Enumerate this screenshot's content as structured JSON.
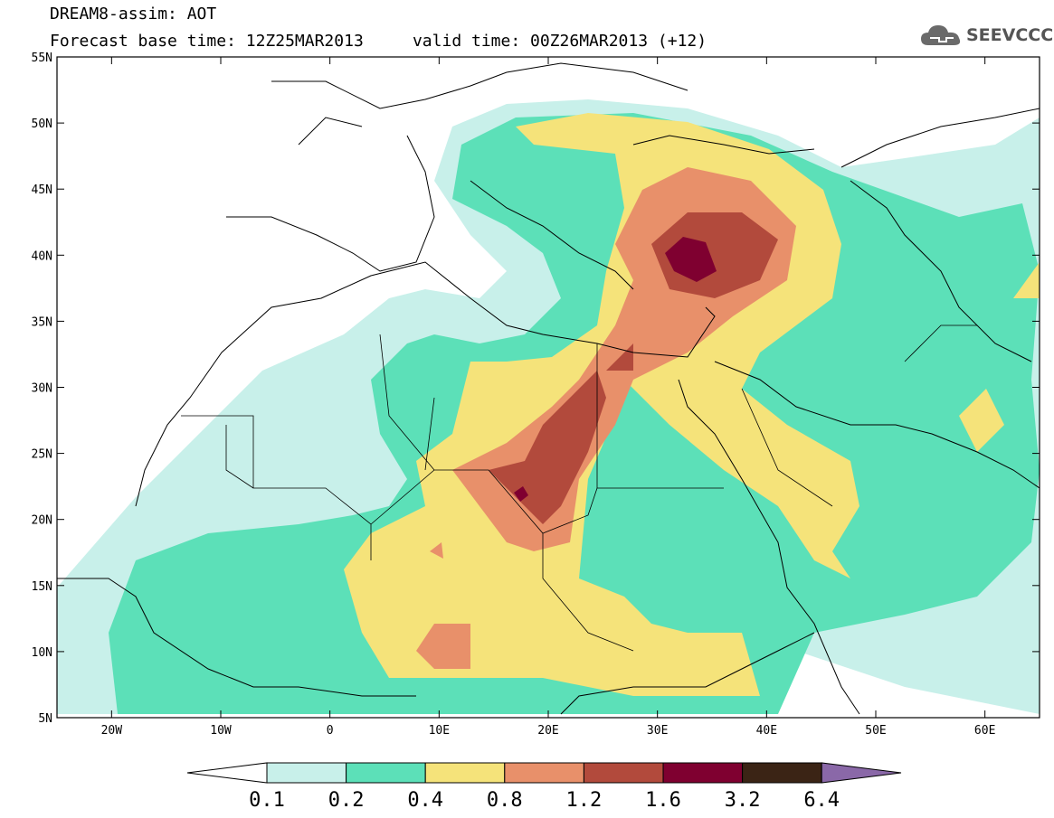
{
  "title": {
    "line1": "DREAM8-assim: AOT",
    "line2": "Forecast base time: 12Z25MAR2013     valid time: 00Z26MAR2013 (+12)"
  },
  "logo": {
    "text": "SEEVCCC",
    "icon": "cloud-icon"
  },
  "map": {
    "lon_range": [
      -25,
      65
    ],
    "lat_range": [
      5,
      55
    ],
    "lon_ticks": [
      {
        "value": -20,
        "label": "20W"
      },
      {
        "value": -10,
        "label": "10W"
      },
      {
        "value": 0,
        "label": "0"
      },
      {
        "value": 10,
        "label": "10E"
      },
      {
        "value": 20,
        "label": "20E"
      },
      {
        "value": 30,
        "label": "30E"
      },
      {
        "value": 40,
        "label": "40E"
      },
      {
        "value": 50,
        "label": "50E"
      },
      {
        "value": 60,
        "label": "60E"
      }
    ],
    "lat_ticks": [
      {
        "value": 55,
        "label": "55N"
      },
      {
        "value": 50,
        "label": "50N"
      },
      {
        "value": 45,
        "label": "45N"
      },
      {
        "value": 40,
        "label": "40N"
      },
      {
        "value": 35,
        "label": "35N"
      },
      {
        "value": 30,
        "label": "30N"
      },
      {
        "value": 25,
        "label": "25N"
      },
      {
        "value": 20,
        "label": "20N"
      },
      {
        "value": 15,
        "label": "15N"
      },
      {
        "value": 10,
        "label": "10N"
      },
      {
        "value": 5,
        "label": "5N"
      }
    ]
  },
  "colorbar": {
    "colors": [
      "#c8f0ea",
      "#5ce0b8",
      "#f5e37a",
      "#e8906a",
      "#b24a3c",
      "#7f0030",
      "#3b2415"
    ],
    "under_color": "#ffffff",
    "over_color": "#8a68a8",
    "labels": [
      "0.1",
      "0.2",
      "0.4",
      "0.8",
      "1.2",
      "1.6",
      "3.2",
      "6.4"
    ]
  }
}
